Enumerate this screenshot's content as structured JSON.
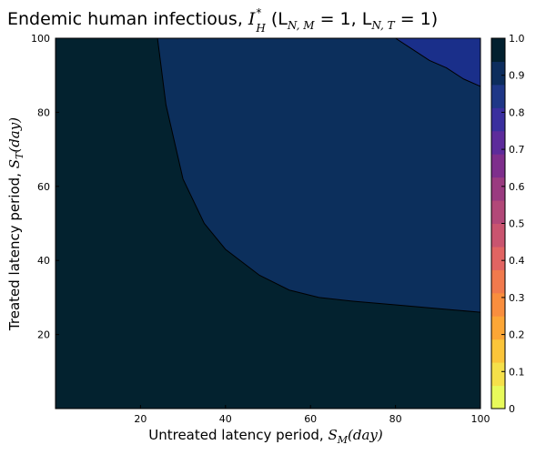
{
  "chart_data": {
    "type": "heatmap",
    "title": {
      "prefix": "Endemic human infectious, ",
      "symbol": "I",
      "superscript": "*",
      "subscript": "H",
      "params": "(L",
      "param1_sub": "N, M",
      "param1_val": " = 1, L",
      "param2_sub": "N, T",
      "param2_val": " = 1)"
    },
    "xlabel": {
      "text": "Untreated latency period, ",
      "symbol": "S",
      "subscript": "M",
      "unit": "(day)"
    },
    "ylabel": {
      "text": "Treated latency period, ",
      "symbol": "S",
      "subscript": "T",
      "unit": "(day)"
    },
    "xlim": [
      0,
      100
    ],
    "ylim": [
      0,
      100
    ],
    "xticks": [
      20,
      40,
      60,
      80,
      100
    ],
    "yticks": [
      20,
      40,
      60,
      80,
      100
    ],
    "colorbar": {
      "range": [
        0,
        1
      ],
      "ticks": [
        "0",
        "0.1",
        "0.2",
        "0.3",
        "0.4",
        "0.5",
        "0.6",
        "0.7",
        "0.8",
        "0.9",
        "1.0"
      ],
      "levels": [
        "#e8fa5b",
        "#f5e04a",
        "#fbc53a",
        "#fca636",
        "#f98e3e",
        "#f17a4d",
        "#e16462",
        "#c9546f",
        "#b24878",
        "#9a3b80",
        "#7e2e8c",
        "#5d2b9b",
        "#3a2f9e",
        "#1f3787",
        "#0d2d5d",
        "#02202f"
      ]
    },
    "regions": [
      {
        "name": "low",
        "color": "#03222f",
        "boundary_x": [
          0,
          24,
          26,
          30,
          35,
          40,
          48,
          55,
          62,
          70,
          80,
          90,
          100
        ],
        "boundary_y": [
          0,
          100,
          82,
          62,
          50,
          43,
          36,
          32,
          30,
          29,
          28,
          27,
          26
        ]
      },
      {
        "name": "mid",
        "color": "#0c2f5c"
      },
      {
        "name": "high",
        "color": "#1a2f8a",
        "boundary_x": [
          80,
          84,
          88,
          92,
          96,
          100
        ],
        "boundary_y": [
          100,
          97,
          94,
          92,
          89,
          87
        ]
      }
    ]
  }
}
